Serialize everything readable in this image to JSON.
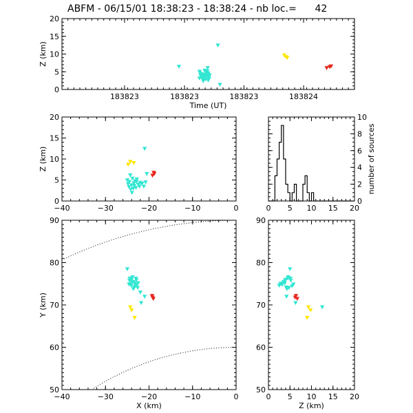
{
  "title": "ABFM - 06/15/01 18:38:23 - 18:38:24 - nb loc.=      42",
  "colors": {
    "cyan": "#33e6d2",
    "yellow": "#ffe600",
    "red": "#e8271c",
    "axis": "#000000"
  },
  "chart_data": [
    {
      "id": "time-height",
      "type": "scatter",
      "xlabel": "Time (UT)",
      "ylabel": "Z (km)",
      "xlim": [
        0,
        1
      ],
      "ylim": [
        0,
        20
      ],
      "xticks": [
        0.214,
        0.419,
        0.622,
        0.826
      ],
      "xtick_labels": [
        "183823",
        "183823",
        "183823",
        "183824"
      ],
      "yticks": [
        0,
        5,
        10,
        15,
        20
      ],
      "ytick_labels": [
        "0",
        "5",
        "10",
        "15",
        "20"
      ],
      "series": [
        {
          "color": "cyan",
          "points": [
            [
              0.4,
              6.5
            ],
            [
              0.533,
              12.5
            ],
            [
              0.54,
              1.4
            ],
            [
              0.498,
              6.1
            ],
            [
              0.47,
              3.2
            ],
            [
              0.48,
              4.0
            ],
            [
              0.49,
              3.6
            ],
            [
              0.5,
              4.6
            ],
            [
              0.47,
              5.1
            ],
            [
              0.482,
              2.7
            ],
            [
              0.495,
              4.9
            ],
            [
              0.503,
              3.1
            ],
            [
              0.475,
              3.9
            ],
            [
              0.488,
              5.4
            ],
            [
              0.505,
              4.1
            ],
            [
              0.492,
              2.9
            ],
            [
              0.478,
              4.4
            ],
            [
              0.485,
              3.4
            ],
            [
              0.498,
              3.8
            ],
            [
              0.472,
              4.7
            ],
            [
              0.5,
              2.6
            ],
            [
              0.49,
              5.0
            ],
            [
              0.48,
              3.0
            ],
            [
              0.495,
              4.3
            ],
            [
              0.486,
              4.2
            ],
            [
              0.476,
              3.7
            ],
            [
              0.497,
              5.2
            ],
            [
              0.483,
              2.4
            ],
            [
              0.502,
              3.5
            ],
            [
              0.474,
              4.0
            ],
            [
              0.489,
              3.3
            ],
            [
              0.494,
              4.6
            ],
            [
              0.49,
              3.9
            ]
          ]
        },
        {
          "color": "yellow",
          "points": [
            [
              0.76,
              9.7
            ],
            [
              0.766,
              9.2
            ],
            [
              0.77,
              9.0
            ]
          ]
        },
        {
          "color": "red",
          "points": [
            [
              0.905,
              6.1
            ],
            [
              0.915,
              6.4
            ],
            [
              0.92,
              6.6
            ]
          ]
        }
      ]
    },
    {
      "id": "x-z",
      "type": "scatter",
      "xlabel": "",
      "ylabel": "Z (km)",
      "xlim": [
        -40,
        0
      ],
      "ylim": [
        0,
        20
      ],
      "xticks": [
        -40,
        -30,
        -20,
        -10,
        0
      ],
      "xtick_labels": [
        "−40",
        "−30",
        "−20",
        "−10",
        "0"
      ],
      "yticks": [
        0,
        5,
        10,
        15,
        20
      ],
      "ytick_labels": [
        "0",
        "5",
        "10",
        "15",
        "20"
      ],
      "series": [
        {
          "color": "cyan",
          "points": [
            [
              -21,
              12.5
            ],
            [
              -25,
              5.0
            ],
            [
              -24.5,
              4.6
            ],
            [
              -24,
              3.8
            ],
            [
              -23.5,
              4.3
            ],
            [
              -22.8,
              5.2
            ],
            [
              -23,
              3.2
            ],
            [
              -22.5,
              4.0
            ],
            [
              -24.2,
              2.8
            ],
            [
              -23.8,
              5.4
            ],
            [
              -23.2,
              4.8
            ],
            [
              -22.2,
              3.5
            ],
            [
              -24.8,
              4.1
            ],
            [
              -23.6,
              3.0
            ],
            [
              -22,
              4.4
            ],
            [
              -23.9,
              2.0
            ],
            [
              -24.3,
              6.2
            ],
            [
              -21.6,
              4.2
            ],
            [
              -22.9,
              4.6
            ],
            [
              -23.4,
              3.7
            ],
            [
              -24.6,
              3.4
            ],
            [
              -20.5,
              6.5
            ],
            [
              -21.2,
              3.5
            ],
            [
              -20.8,
              4.5
            ]
          ]
        },
        {
          "color": "yellow",
          "points": [
            [
              -24.3,
              9.4
            ],
            [
              -23.5,
              9.1
            ],
            [
              -24.8,
              8.7
            ]
          ]
        },
        {
          "color": "red",
          "points": [
            [
              -18.8,
              6.5
            ],
            [
              -19.2,
              6.1
            ],
            [
              -18.9,
              6.8
            ]
          ]
        }
      ]
    },
    {
      "id": "histogram",
      "type": "bar",
      "xlabel": "",
      "ylabel": "number of sources",
      "xlim": [
        0,
        20
      ],
      "ylim": [
        0,
        10
      ],
      "xticks": [
        0,
        5,
        10,
        15,
        20
      ],
      "xtick_labels": [
        "0",
        "5",
        "10",
        "15",
        "20"
      ],
      "yticks": [
        0,
        2,
        4,
        6,
        8,
        10
      ],
      "ytick_labels": [
        "0",
        "2",
        "4",
        "6",
        "8",
        "10"
      ],
      "bin_width": 0.5,
      "bins_start": 1.5,
      "values": [
        3,
        5,
        7,
        9,
        5,
        2,
        1,
        0,
        1,
        2,
        0,
        0,
        0,
        2,
        3,
        1,
        0,
        1,
        0,
        0
      ]
    },
    {
      "id": "x-y",
      "type": "scatter",
      "xlabel": "X (km)",
      "ylabel": "Y (km)",
      "xlim": [
        -40,
        0
      ],
      "ylim": [
        50,
        90
      ],
      "xticks": [
        -40,
        -30,
        -20,
        -10,
        0
      ],
      "xtick_labels": [
        "−40",
        "−30",
        "−20",
        "−10",
        "0"
      ],
      "yticks": [
        50,
        60,
        70,
        80,
        90
      ],
      "ytick_labels": [
        "50",
        "60",
        "70",
        "80",
        "90"
      ],
      "series": [
        {
          "color": "cyan",
          "points": [
            [
              -25,
              78.5
            ],
            [
              -24,
              76.0
            ],
            [
              -23.5,
              75.5
            ],
            [
              -23,
              76.3
            ],
            [
              -24.2,
              75.0
            ],
            [
              -22.8,
              74.8
            ],
            [
              -23.4,
              74.2
            ],
            [
              -24.5,
              75.8
            ],
            [
              -22.5,
              75.2
            ],
            [
              -23.8,
              76.6
            ],
            [
              -23.1,
              74.5
            ],
            [
              -24.1,
              74.6
            ],
            [
              -22.9,
              75.9
            ],
            [
              -23.6,
              73.8
            ],
            [
              -24.4,
              76.3
            ],
            [
              -23.3,
              75.1
            ],
            [
              -22.6,
              74.1
            ],
            [
              -23.9,
              75.4
            ],
            [
              -24.6,
              74.9
            ],
            [
              -21,
              72.0
            ],
            [
              -21.8,
              70.5
            ],
            [
              -22,
              73.0
            ]
          ]
        },
        {
          "color": "yellow",
          "points": [
            [
              -24.3,
              69.5
            ],
            [
              -24,
              68.8
            ],
            [
              -23.3,
              67.0
            ]
          ]
        },
        {
          "color": "red",
          "points": [
            [
              -19.3,
              72.2
            ],
            [
              -19.0,
              71.5
            ],
            [
              -19.2,
              71.8
            ]
          ]
        }
      ]
    },
    {
      "id": "z-y",
      "type": "scatter",
      "xlabel": "Z (km)",
      "ylabel": "",
      "xlim": [
        0,
        20
      ],
      "ylim": [
        50,
        90
      ],
      "xticks": [
        0,
        5,
        10,
        15,
        20
      ],
      "xtick_labels": [
        "0",
        "5",
        "10",
        "15",
        "20"
      ],
      "yticks": [
        50,
        60,
        70,
        80,
        90
      ],
      "ytick_labels": [
        "50",
        "60",
        "70",
        "80",
        "90"
      ],
      "series": [
        {
          "color": "cyan",
          "points": [
            [
              5.0,
              78.5
            ],
            [
              4,
              76.0
            ],
            [
              3.5,
              75.5
            ],
            [
              4.5,
              76.3
            ],
            [
              2.8,
              75.0
            ],
            [
              3.2,
              74.8
            ],
            [
              4.1,
              74.2
            ],
            [
              5.2,
              75.8
            ],
            [
              3.8,
              75.2
            ],
            [
              4.6,
              76.6
            ],
            [
              5.5,
              74.5
            ],
            [
              2.5,
              74.6
            ],
            [
              3.9,
              75.9
            ],
            [
              4.3,
              73.8
            ],
            [
              5.1,
              76.3
            ],
            [
              3.0,
              75.1
            ],
            [
              4.8,
              74.1
            ],
            [
              3.6,
              75.4
            ],
            [
              5.8,
              74.9
            ],
            [
              12.5,
              69.5
            ],
            [
              6.3,
              70.5
            ],
            [
              4.2,
              72.0
            ]
          ]
        },
        {
          "color": "yellow",
          "points": [
            [
              9.3,
              69.5
            ],
            [
              9.8,
              68.8
            ],
            [
              9.0,
              67.0
            ]
          ]
        },
        {
          "color": "red",
          "points": [
            [
              6.4,
              72.2
            ],
            [
              6.7,
              71.5
            ],
            [
              6.2,
              71.8
            ]
          ]
        }
      ]
    }
  ]
}
